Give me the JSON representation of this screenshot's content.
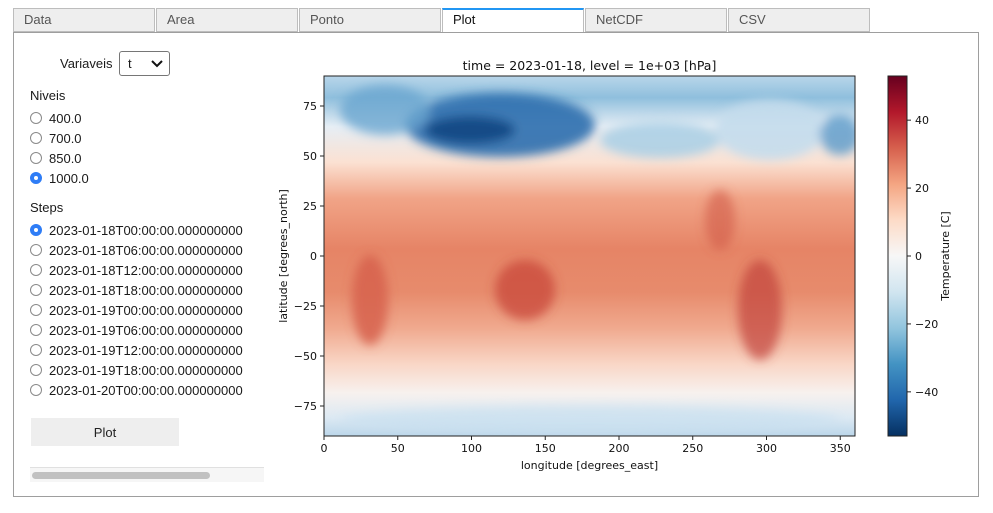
{
  "tabs": [
    {
      "label": "Data",
      "active": false
    },
    {
      "label": "Area",
      "active": false
    },
    {
      "label": "Ponto",
      "active": false
    },
    {
      "label": "Plot",
      "active": true
    },
    {
      "label": "NetCDF",
      "active": false
    },
    {
      "label": "CSV",
      "active": false
    }
  ],
  "variable": {
    "label": "Variaveis",
    "selected": "t"
  },
  "levels": {
    "title": "Niveis",
    "options": [
      "400.0",
      "700.0",
      "850.0",
      "1000.0"
    ],
    "selected": "1000.0"
  },
  "steps": {
    "title": "Steps",
    "options": [
      "2023-01-18T00:00:00.000000000",
      "2023-01-18T06:00:00.000000000",
      "2023-01-18T12:00:00.000000000",
      "2023-01-18T18:00:00.000000000",
      "2023-01-19T00:00:00.000000000",
      "2023-01-19T06:00:00.000000000",
      "2023-01-19T12:00:00.000000000",
      "2023-01-19T18:00:00.000000000",
      "2023-01-20T00:00:00.000000000"
    ],
    "selected": "2023-01-18T00:00:00.000000000"
  },
  "plot_button": "Plot",
  "chart_data": {
    "type": "heatmap",
    "title": "time = 2023-01-18, level = 1e+03 [hPa]",
    "xlabel": "longitude [degrees_east]",
    "ylabel": "latitude [degrees_north]",
    "xlim": [
      0,
      360
    ],
    "ylim": [
      -90,
      90
    ],
    "xticks": [
      "0",
      "50",
      "100",
      "150",
      "200",
      "250",
      "300",
      "350"
    ],
    "yticks": [
      "75",
      "50",
      "25",
      "0",
      "−25",
      "−50",
      "−75"
    ],
    "colorbar": {
      "label": "Temperature [C]",
      "range": [
        -53,
        53
      ],
      "ticks": [
        "40",
        "20",
        "0",
        "−20",
        "−40"
      ],
      "colormap": "RdBu_r",
      "colors": [
        "#053061",
        "#2166ac",
        "#4393c3",
        "#92c5de",
        "#d1e5f0",
        "#f7f7f7",
        "#fddbc7",
        "#f4a582",
        "#d6604d",
        "#b2182b",
        "#67001f"
      ]
    },
    "description": "Global 1000 hPa air temperature map"
  }
}
